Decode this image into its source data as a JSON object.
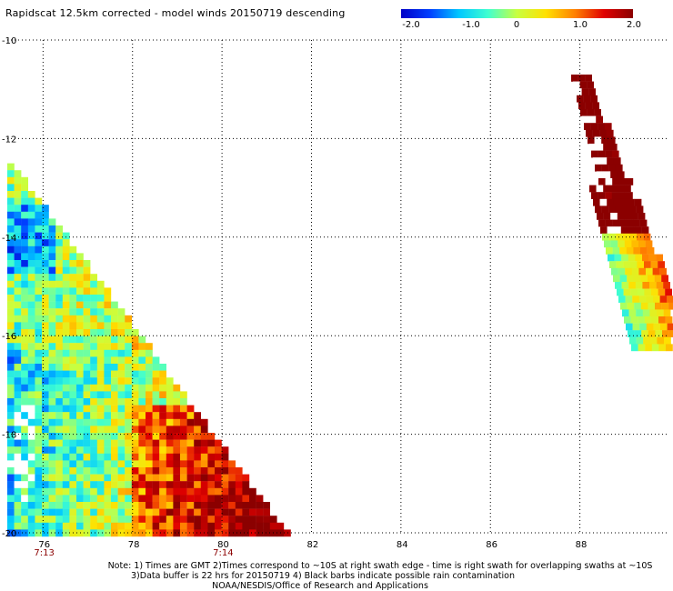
{
  "title": "Rapidscat 12.5km corrected - model winds 20150719 descending",
  "colorbar": {
    "labels": [
      "-2.0",
      "-1.0",
      "0",
      "1.0",
      "2.0"
    ],
    "stops": [
      "#0000c8",
      "#0040ff",
      "#00c8ff",
      "#40ffd0",
      "#c8ff40",
      "#ffe000",
      "#ff8000",
      "#e00000",
      "#8b0000"
    ]
  },
  "chart_data": {
    "type": "heatmap",
    "x_ticks": [
      "76",
      "78",
      "80",
      "82",
      "84",
      "86",
      "88"
    ],
    "y_ticks": [
      "-10",
      "-12",
      "-14",
      "-16",
      "-18",
      "-20"
    ],
    "xlim": [
      75.2,
      90.0
    ],
    "ylim": [
      -20.0,
      -10.0
    ],
    "swath_times": [
      {
        "label": "7:13",
        "lon": 76.0
      },
      {
        "label": "7:14",
        "lon": 80.0
      }
    ],
    "value_range": [
      -2.0,
      2.0
    ],
    "grid": true
  },
  "notes": [
    "Note: 1) Times are GMT 2)Times correspond to ~10S at right swath edge - time is right swath for overlapping swaths at ~10S",
    "3)Data buffer is 22 hrs for 20150719 4) Black barbs indicate possible rain contamination",
    "NOAA/NESDIS/Office of Research and Applications"
  ]
}
